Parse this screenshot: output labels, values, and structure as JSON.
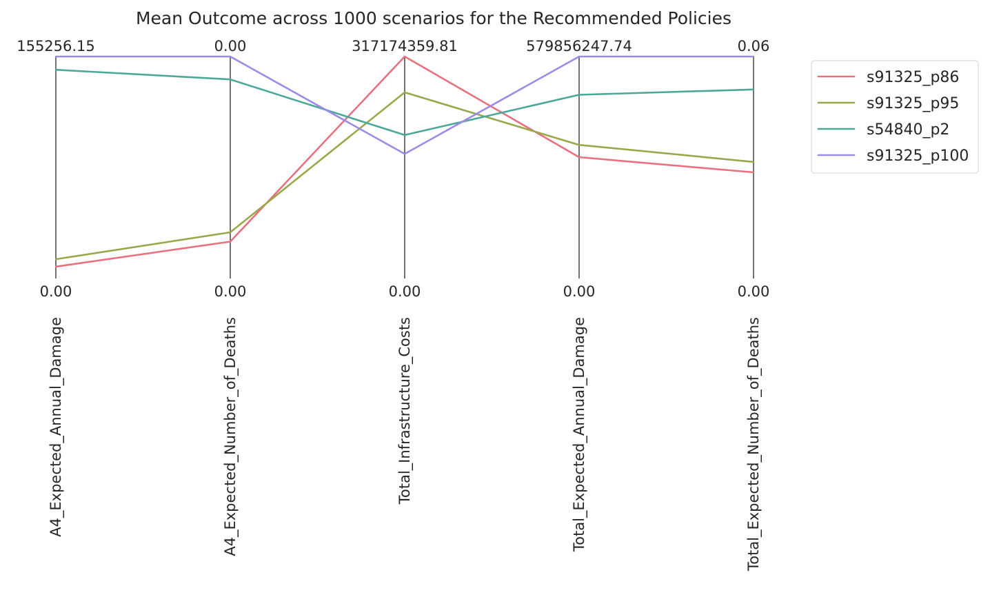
{
  "chart_data": {
    "type": "parallel_coordinates",
    "title": "Mean Outcome across 1000 scenarios for the Recommended Policies",
    "axes": [
      {
        "name": "A4_Expected_Annual_Damage",
        "max_label": "155256.15",
        "min_label": "0.00",
        "range": [
          0,
          155256.15
        ]
      },
      {
        "name": "A4_Expected_Number_of_Deaths",
        "max_label": "0.00",
        "min_label": "0.00",
        "range": [
          0,
          0.001
        ]
      },
      {
        "name": "Total_Infrastructure_Costs",
        "max_label": "317174359.81",
        "min_label": "0.00",
        "range": [
          0,
          317174359.81
        ]
      },
      {
        "name": "Total_Expected_Annual_Damage",
        "max_label": "579856247.74",
        "min_label": "0.00",
        "range": [
          0,
          579856247.74
        ]
      },
      {
        "name": "Total_Expected_Number_of_Deaths",
        "max_label": "0.06",
        "min_label": "0.00",
        "range": [
          0,
          0.06
        ]
      }
    ],
    "series": [
      {
        "name": "s91325_p86",
        "color": "#e8707f",
        "values": [
          8300,
          0.000166,
          317174359.81,
          317000000,
          0.0287
        ]
      },
      {
        "name": "s91325_p95",
        "color": "#98a84a",
        "values": [
          13500,
          0.000208,
          266000000,
          349000000,
          0.0315
        ]
      },
      {
        "name": "s54840_p2",
        "color": "#4aa79a",
        "values": [
          146000,
          0.000897,
          205000000,
          480000000,
          0.0511
        ]
      },
      {
        "name": "s91325_p100",
        "color": "#9b8ae8",
        "values": [
          155256.15,
          0.001,
          178000000,
          579856247.74,
          0.06
        ]
      }
    ],
    "legend_position": "upper-right-outside",
    "grid": false
  }
}
